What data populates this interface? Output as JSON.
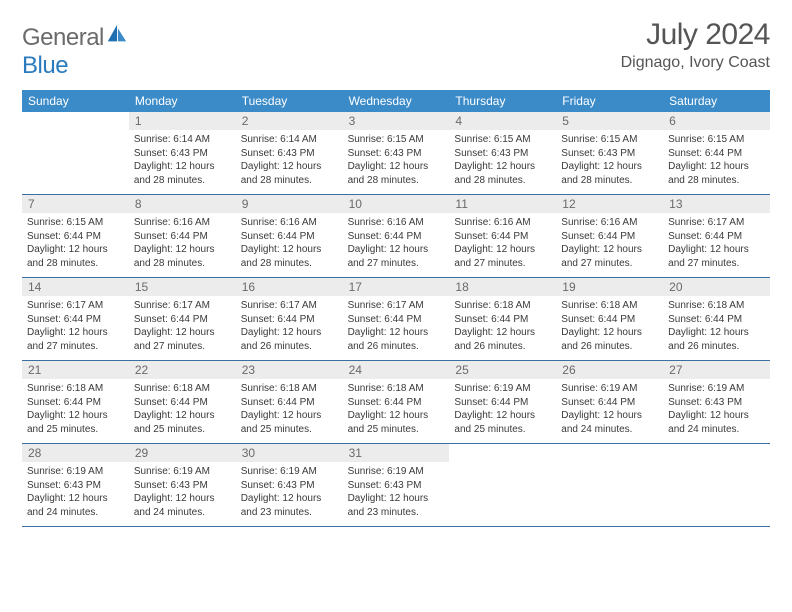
{
  "logo": {
    "general": "General",
    "blue": "Blue"
  },
  "title": {
    "month_year": "July 2024",
    "location": "Dignago, Ivory Coast"
  },
  "colors": {
    "header_bg": "#3b8bc9",
    "daynum_bg": "#ececec",
    "row_border": "#3b6fa3",
    "text": "#3a3a3a",
    "logo_gray": "#6b6b6b",
    "logo_blue": "#2b7bbf"
  },
  "weekdays": [
    "Sunday",
    "Monday",
    "Tuesday",
    "Wednesday",
    "Thursday",
    "Friday",
    "Saturday"
  ],
  "weeks": [
    [
      {
        "n": "",
        "sr": "",
        "ss": "",
        "dl": ""
      },
      {
        "n": "1",
        "sr": "6:14 AM",
        "ss": "6:43 PM",
        "dl": "12 hours and 28 minutes."
      },
      {
        "n": "2",
        "sr": "6:14 AM",
        "ss": "6:43 PM",
        "dl": "12 hours and 28 minutes."
      },
      {
        "n": "3",
        "sr": "6:15 AM",
        "ss": "6:43 PM",
        "dl": "12 hours and 28 minutes."
      },
      {
        "n": "4",
        "sr": "6:15 AM",
        "ss": "6:43 PM",
        "dl": "12 hours and 28 minutes."
      },
      {
        "n": "5",
        "sr": "6:15 AM",
        "ss": "6:43 PM",
        "dl": "12 hours and 28 minutes."
      },
      {
        "n": "6",
        "sr": "6:15 AM",
        "ss": "6:44 PM",
        "dl": "12 hours and 28 minutes."
      }
    ],
    [
      {
        "n": "7",
        "sr": "6:15 AM",
        "ss": "6:44 PM",
        "dl": "12 hours and 28 minutes."
      },
      {
        "n": "8",
        "sr": "6:16 AM",
        "ss": "6:44 PM",
        "dl": "12 hours and 28 minutes."
      },
      {
        "n": "9",
        "sr": "6:16 AM",
        "ss": "6:44 PM",
        "dl": "12 hours and 28 minutes."
      },
      {
        "n": "10",
        "sr": "6:16 AM",
        "ss": "6:44 PM",
        "dl": "12 hours and 27 minutes."
      },
      {
        "n": "11",
        "sr": "6:16 AM",
        "ss": "6:44 PM",
        "dl": "12 hours and 27 minutes."
      },
      {
        "n": "12",
        "sr": "6:16 AM",
        "ss": "6:44 PM",
        "dl": "12 hours and 27 minutes."
      },
      {
        "n": "13",
        "sr": "6:17 AM",
        "ss": "6:44 PM",
        "dl": "12 hours and 27 minutes."
      }
    ],
    [
      {
        "n": "14",
        "sr": "6:17 AM",
        "ss": "6:44 PM",
        "dl": "12 hours and 27 minutes."
      },
      {
        "n": "15",
        "sr": "6:17 AM",
        "ss": "6:44 PM",
        "dl": "12 hours and 27 minutes."
      },
      {
        "n": "16",
        "sr": "6:17 AM",
        "ss": "6:44 PM",
        "dl": "12 hours and 26 minutes."
      },
      {
        "n": "17",
        "sr": "6:17 AM",
        "ss": "6:44 PM",
        "dl": "12 hours and 26 minutes."
      },
      {
        "n": "18",
        "sr": "6:18 AM",
        "ss": "6:44 PM",
        "dl": "12 hours and 26 minutes."
      },
      {
        "n": "19",
        "sr": "6:18 AM",
        "ss": "6:44 PM",
        "dl": "12 hours and 26 minutes."
      },
      {
        "n": "20",
        "sr": "6:18 AM",
        "ss": "6:44 PM",
        "dl": "12 hours and 26 minutes."
      }
    ],
    [
      {
        "n": "21",
        "sr": "6:18 AM",
        "ss": "6:44 PM",
        "dl": "12 hours and 25 minutes."
      },
      {
        "n": "22",
        "sr": "6:18 AM",
        "ss": "6:44 PM",
        "dl": "12 hours and 25 minutes."
      },
      {
        "n": "23",
        "sr": "6:18 AM",
        "ss": "6:44 PM",
        "dl": "12 hours and 25 minutes."
      },
      {
        "n": "24",
        "sr": "6:18 AM",
        "ss": "6:44 PM",
        "dl": "12 hours and 25 minutes."
      },
      {
        "n": "25",
        "sr": "6:19 AM",
        "ss": "6:44 PM",
        "dl": "12 hours and 25 minutes."
      },
      {
        "n": "26",
        "sr": "6:19 AM",
        "ss": "6:44 PM",
        "dl": "12 hours and 24 minutes."
      },
      {
        "n": "27",
        "sr": "6:19 AM",
        "ss": "6:43 PM",
        "dl": "12 hours and 24 minutes."
      }
    ],
    [
      {
        "n": "28",
        "sr": "6:19 AM",
        "ss": "6:43 PM",
        "dl": "12 hours and 24 minutes."
      },
      {
        "n": "29",
        "sr": "6:19 AM",
        "ss": "6:43 PM",
        "dl": "12 hours and 24 minutes."
      },
      {
        "n": "30",
        "sr": "6:19 AM",
        "ss": "6:43 PM",
        "dl": "12 hours and 23 minutes."
      },
      {
        "n": "31",
        "sr": "6:19 AM",
        "ss": "6:43 PM",
        "dl": "12 hours and 23 minutes."
      },
      {
        "n": "",
        "sr": "",
        "ss": "",
        "dl": ""
      },
      {
        "n": "",
        "sr": "",
        "ss": "",
        "dl": ""
      },
      {
        "n": "",
        "sr": "",
        "ss": "",
        "dl": ""
      }
    ]
  ],
  "labels": {
    "sunrise": "Sunrise:",
    "sunset": "Sunset:",
    "daylight": "Daylight:"
  }
}
